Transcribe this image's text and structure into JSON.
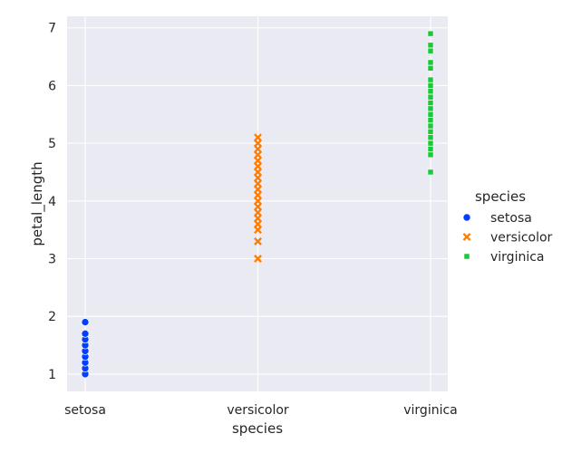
{
  "chart_data": {
    "type": "scatter",
    "title": "",
    "xlabel": "species",
    "ylabel": "petal_length",
    "categories": [
      "setosa",
      "versicolor",
      "virginica"
    ],
    "ylim": [
      0.7,
      7.2
    ],
    "yticks": [
      1,
      2,
      3,
      4,
      5,
      6,
      7
    ],
    "grid": true,
    "legend": {
      "title": "species",
      "placement": "right"
    },
    "series": [
      {
        "name": "setosa",
        "marker": "circle",
        "color": "#023eff",
        "x": "setosa",
        "values": [
          1.0,
          1.1,
          1.2,
          1.3,
          1.4,
          1.5,
          1.6,
          1.7,
          1.9
        ]
      },
      {
        "name": "versicolor",
        "marker": "x",
        "color": "#ff7c00",
        "x": "versicolor",
        "values": [
          3.0,
          3.3,
          3.5,
          3.6,
          3.7,
          3.8,
          3.9,
          4.0,
          4.1,
          4.2,
          4.3,
          4.4,
          4.5,
          4.6,
          4.7,
          4.8,
          4.9,
          5.0,
          5.1
        ]
      },
      {
        "name": "virginica",
        "marker": "square",
        "color": "#1ac938",
        "x": "virginica",
        "values": [
          4.5,
          4.8,
          4.9,
          5.0,
          5.1,
          5.2,
          5.3,
          5.4,
          5.5,
          5.6,
          5.7,
          5.8,
          5.9,
          6.0,
          6.1,
          6.3,
          6.4,
          6.6,
          6.7,
          6.9
        ]
      }
    ]
  },
  "colors": {
    "plot_background": "#eaeaf2",
    "grid": "#ffffff",
    "text": "#262626"
  }
}
